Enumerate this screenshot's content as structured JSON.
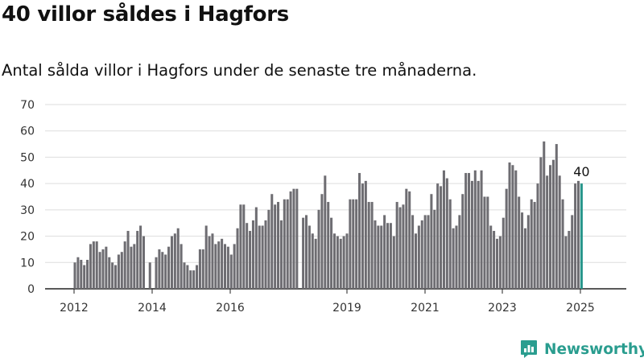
{
  "title": "40 villor såldes i Hagfors",
  "subtitle": "Antal sålda villor i Hagfors under de senaste tre månaderna.",
  "brand": {
    "name": "Newsworthy",
    "icon": "newsworthy-logo-icon",
    "color": "#2a9d8f"
  },
  "chart_data": {
    "type": "bar",
    "title": "40 villor såldes i Hagfors",
    "subtitle": "Antal sålda villor i Hagfors under de senaste tre månaderna.",
    "xlabel": "",
    "ylabel": "",
    "ylim": [
      0,
      70
    ],
    "yticks": [
      0,
      10,
      20,
      30,
      40,
      50,
      60,
      70
    ],
    "xticks": [
      "2012",
      "2014",
      "2016",
      "2019",
      "2021",
      "2023",
      "2025"
    ],
    "grid": true,
    "legend": "none",
    "bar_color": "#6e6d72",
    "highlight_color": "#26958a",
    "highlight_last": true,
    "annotations": [
      {
        "text": "40",
        "target": "last_bar"
      }
    ],
    "values": [
      10,
      12,
      11,
      9,
      11,
      17,
      18,
      18,
      14,
      15,
      16,
      12,
      10,
      9,
      13,
      14,
      18,
      22,
      16,
      17,
      22,
      24,
      20,
      0,
      10,
      0,
      12,
      15,
      14,
      13,
      16,
      20,
      21,
      23,
      17,
      10,
      9,
      7,
      7,
      9,
      15,
      15,
      24,
      20,
      21,
      17,
      18,
      19,
      17,
      16,
      13,
      17,
      23,
      32,
      32,
      25,
      22,
      26,
      31,
      24,
      24,
      26,
      30,
      36,
      32,
      33,
      26,
      34,
      34,
      37,
      38,
      38,
      0,
      27,
      28,
      24,
      21,
      19,
      30,
      36,
      43,
      33,
      27,
      21,
      20,
      19,
      20,
      21,
      34,
      34,
      34,
      44,
      40,
      41,
      33,
      33,
      26,
      24,
      24,
      28,
      25,
      25,
      20,
      33,
      31,
      32,
      38,
      37,
      28,
      21,
      24,
      26,
      28,
      28,
      36,
      30,
      40,
      39,
      45,
      42,
      34,
      23,
      24,
      28,
      36,
      44,
      44,
      41,
      45,
      41,
      45,
      35,
      35,
      24,
      22,
      19,
      20,
      27,
      38,
      48,
      47,
      45,
      35,
      29,
      23,
      28,
      34,
      33,
      40,
      50,
      56,
      43,
      47,
      49,
      55,
      43,
      34,
      20,
      22,
      28,
      40,
      41,
      40
    ]
  }
}
